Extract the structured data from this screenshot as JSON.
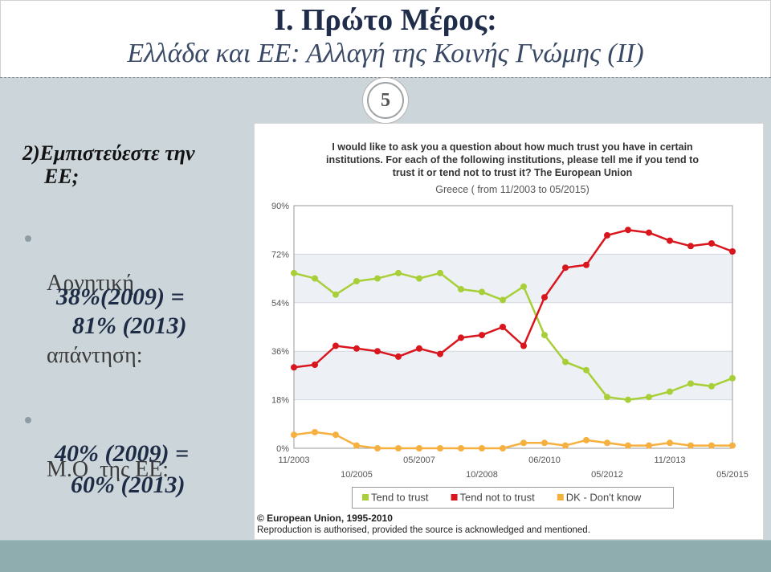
{
  "slide": {
    "title": "I. Πρώτο Μέρος:",
    "subtitle": "Ελλάδα και ΕΕ: Αλλαγή της Κοινής Γνώμης (II)",
    "page_number": "5",
    "question_lines": [
      "2)Εμπιστεύεστε την",
      "ΕΕ;"
    ],
    "bullets": [
      {
        "label_lines": [
          "Αρνητική",
          "απάντηση:"
        ],
        "value_lines": [
          "38%(2009) =",
          "81% (2013)"
        ]
      },
      {
        "label_lines": [
          "Μ.Ο  της ΕΕ:"
        ],
        "value_lines": [
          "40% (2009) =",
          "60% (2013)"
        ]
      }
    ]
  },
  "chart_data": {
    "type": "line",
    "title_lines": [
      "I would like to ask you a question about how much trust you have in certain",
      "institutions. For each of the following institutions, please tell me if you tend to",
      "trust it or tend not to trust it? The European Union"
    ],
    "subtitle": "Greece ( from 11/2003 to 05/2015)",
    "categories": [
      "11/2003",
      "",
      "",
      "10/2005",
      "",
      "",
      "05/2007",
      "",
      "",
      "10/2008",
      "",
      "",
      "06/2010",
      "",
      "",
      "05/2012",
      "",
      "",
      "11/2013",
      "",
      "",
      "05/2015"
    ],
    "ylim": [
      0,
      90
    ],
    "yticks": [
      0,
      18,
      36,
      54,
      72,
      90
    ],
    "ytick_labels": [
      "0%",
      "18%",
      "36%",
      "54%",
      "72%",
      "90%"
    ],
    "grid": true,
    "legend": "bottom",
    "series": [
      {
        "name": "Tend to trust",
        "color": "#a8cf38",
        "values": [
          65,
          63,
          57,
          62,
          63,
          65,
          63,
          65,
          59,
          58,
          55,
          60,
          42,
          32,
          29,
          19,
          18,
          19,
          21,
          24,
          23,
          26
        ]
      },
      {
        "name": "Tend not to trust",
        "color": "#d9161d",
        "values": [
          30,
          31,
          38,
          37,
          36,
          34,
          37,
          35,
          41,
          42,
          45,
          38,
          56,
          67,
          68,
          79,
          81,
          80,
          77,
          75,
          76,
          73
        ]
      },
      {
        "name": "DK - Don't know",
        "color": "#f6b040",
        "values": [
          5,
          6,
          5,
          1,
          0,
          0,
          0,
          0,
          0,
          0,
          0,
          2,
          2,
          1,
          3,
          2,
          1,
          1,
          2,
          1,
          1,
          1
        ]
      }
    ],
    "source_lines": [
      "© European Union, 1995-2010",
      "Reproduction is authorised, provided the source is acknowledged and mentioned."
    ]
  }
}
